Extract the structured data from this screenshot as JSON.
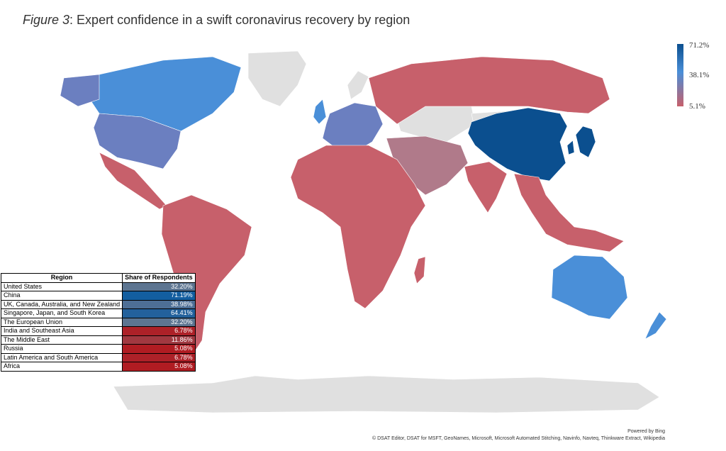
{
  "title": {
    "figure_label": "Figure 3",
    "text": ": Expert confidence in a swift coronavirus recovery by region"
  },
  "legend": {
    "max_label": "71.2%",
    "mid_label": "38.1%",
    "min_label": "5.1%"
  },
  "colors": {
    "high": "#0b4f8f",
    "mid": "#4a8fd8",
    "low": "#c7606b",
    "no_data": "#e0e0e0",
    "table_high": "#135ea0",
    "table_low": "#b01c22"
  },
  "table": {
    "header_region": "Region",
    "header_share": "Share of Respondents",
    "rows": [
      {
        "region": "United States",
        "share": "32.20%"
      },
      {
        "region": "China",
        "share": "71.19%"
      },
      {
        "region": "UK, Canada, Australia, and New Zealand",
        "share": "38.98%"
      },
      {
        "region": "Singapore, Japan, and South Korea",
        "share": "64.41%"
      },
      {
        "region": "The European Union",
        "share": "32.20%"
      },
      {
        "region": "India and Southeast Asia",
        "share": "6.78%"
      },
      {
        "region": "The Middle East",
        "share": "11.86%"
      },
      {
        "region": "Russia",
        "share": "5.08%"
      },
      {
        "region": "Latin America and South America",
        "share": "6.78%"
      },
      {
        "region": "Africa",
        "share": "5.08%"
      }
    ]
  },
  "footer": {
    "powered_by": "Powered by Bing",
    "attribution": "© DSAT Editor, DSAT for MSFT, GeoNames, Microsoft, Microsoft Automated Stitching, Navinfo, Navteq, Thinkware Extract, Wikipedia"
  }
}
